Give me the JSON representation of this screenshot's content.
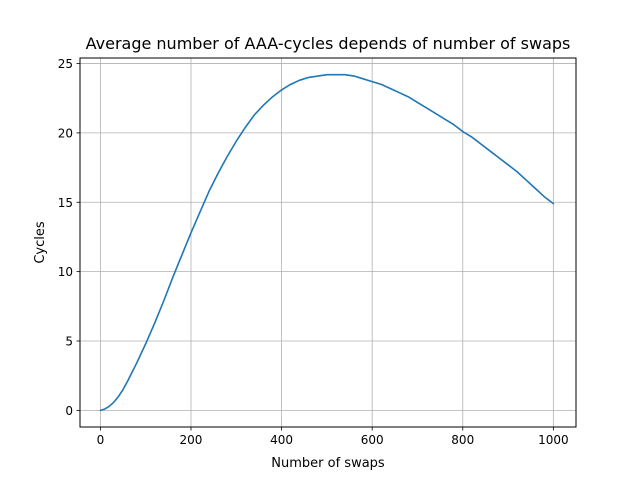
{
  "chart_data": {
    "type": "line",
    "title": "Average number of AAA-cycles depends of number of swaps",
    "xlabel": "Number of swaps",
    "ylabel": "Cycles",
    "xlim": [
      -45,
      1050
    ],
    "ylim": [
      -1.2,
      25.4
    ],
    "xticks": [
      0,
      200,
      400,
      600,
      800,
      1000
    ],
    "yticks": [
      0,
      5,
      10,
      15,
      20,
      25
    ],
    "grid": true,
    "legend": "none",
    "series": [
      {
        "color": "#1f77b4",
        "x": [
          0,
          10,
          20,
          30,
          40,
          50,
          60,
          80,
          100,
          120,
          140,
          160,
          180,
          200,
          220,
          240,
          260,
          280,
          300,
          320,
          340,
          360,
          380,
          400,
          420,
          440,
          460,
          480,
          500,
          520,
          540,
          560,
          580,
          600,
          620,
          640,
          660,
          680,
          700,
          720,
          740,
          760,
          780,
          800,
          820,
          840,
          860,
          880,
          900,
          920,
          940,
          960,
          980,
          1000
        ],
        "y": [
          0.0,
          0.1,
          0.3,
          0.6,
          1.0,
          1.5,
          2.1,
          3.4,
          4.8,
          6.3,
          7.9,
          9.6,
          11.2,
          12.8,
          14.3,
          15.8,
          17.1,
          18.3,
          19.4,
          20.4,
          21.3,
          22.0,
          22.6,
          23.1,
          23.5,
          23.8,
          24.0,
          24.1,
          24.2,
          24.2,
          24.2,
          24.1,
          23.9,
          23.7,
          23.5,
          23.2,
          22.9,
          22.6,
          22.2,
          21.8,
          21.4,
          21.0,
          20.6,
          20.1,
          19.7,
          19.2,
          18.7,
          18.2,
          17.7,
          17.2,
          16.6,
          16.0,
          15.4,
          14.9
        ]
      }
    ]
  }
}
